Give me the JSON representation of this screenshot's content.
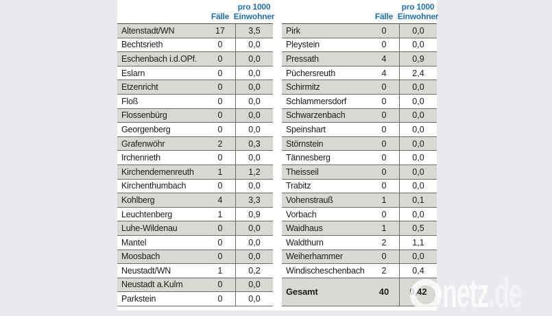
{
  "header": {
    "cases_label": "Fälle",
    "per1000_line1": "pro 1000",
    "per1000_line2": "Einwohner"
  },
  "chart_data": {
    "type": "table",
    "columns": [
      "",
      "Fälle",
      "pro 1000 Einwohner"
    ],
    "left_rows": [
      {
        "name": "Altenstadt/WN",
        "cases": "17",
        "per1000": "3,5"
      },
      {
        "name": "Bechtsrieth",
        "cases": "0",
        "per1000": "0,0"
      },
      {
        "name": "Eschenbach i.d.OPf.",
        "cases": "0",
        "per1000": "0,0"
      },
      {
        "name": "Eslarn",
        "cases": "0",
        "per1000": "0,0"
      },
      {
        "name": "Etzenricht",
        "cases": "0",
        "per1000": "0,0"
      },
      {
        "name": "Floß",
        "cases": "0",
        "per1000": "0,0"
      },
      {
        "name": "Flossenbürg",
        "cases": "0",
        "per1000": "0,0"
      },
      {
        "name": "Georgenberg",
        "cases": "0",
        "per1000": "0,0"
      },
      {
        "name": "Grafenwöhr",
        "cases": "2",
        "per1000": "0,3"
      },
      {
        "name": "Irchenrieth",
        "cases": "0",
        "per1000": "0,0"
      },
      {
        "name": "Kirchendemenreuth",
        "cases": "1",
        "per1000": "1,2"
      },
      {
        "name": "Kirchenthumbach",
        "cases": "0",
        "per1000": "0,0"
      },
      {
        "name": "Kohlberg",
        "cases": "4",
        "per1000": "3,3"
      },
      {
        "name": "Leuchtenberg",
        "cases": "1",
        "per1000": "0,9"
      },
      {
        "name": "Luhe-Wildenau",
        "cases": "0",
        "per1000": "0,0"
      },
      {
        "name": "Mantel",
        "cases": "0",
        "per1000": "0,0"
      },
      {
        "name": "Moosbach",
        "cases": "0",
        "per1000": "0,0"
      },
      {
        "name": "Neustadt/WN",
        "cases": "1",
        "per1000": "0,2"
      },
      {
        "name": "Neustadt a.Kulm",
        "cases": "0",
        "per1000": "0,0"
      },
      {
        "name": "Parkstein",
        "cases": "0",
        "per1000": "0,0"
      }
    ],
    "right_rows": [
      {
        "name": "Pirk",
        "cases": "0",
        "per1000": "0,0"
      },
      {
        "name": "Pleystein",
        "cases": "0",
        "per1000": "0,0"
      },
      {
        "name": "Pressath",
        "cases": "4",
        "per1000": "0,9"
      },
      {
        "name": "Püchersreuth",
        "cases": "4",
        "per1000": "2,4"
      },
      {
        "name": "Schirmitz",
        "cases": "0",
        "per1000": "0,0"
      },
      {
        "name": "Schlammersdorf",
        "cases": "0",
        "per1000": "0,0"
      },
      {
        "name": "Schwarzenbach",
        "cases": "0",
        "per1000": "0,0"
      },
      {
        "name": "Speinshart",
        "cases": "0",
        "per1000": "0,0"
      },
      {
        "name": "Störnstein",
        "cases": "0",
        "per1000": "0,0"
      },
      {
        "name": "Tännesberg",
        "cases": "0",
        "per1000": "0,0"
      },
      {
        "name": "Theisseil",
        "cases": "0",
        "per1000": "0,0"
      },
      {
        "name": "Trabitz",
        "cases": "0",
        "per1000": "0,0"
      },
      {
        "name": "Vohenstrauß",
        "cases": "1",
        "per1000": "0,1"
      },
      {
        "name": "Vorbach",
        "cases": "0",
        "per1000": "0,0"
      },
      {
        "name": "Waidhaus",
        "cases": "1",
        "per1000": "0,5"
      },
      {
        "name": "Waldthurn",
        "cases": "2",
        "per1000": "1,1"
      },
      {
        "name": "Weiherhammer",
        "cases": "0",
        "per1000": "0,0"
      },
      {
        "name": "Windischeschenbach",
        "cases": "2",
        "per1000": "0,4"
      }
    ],
    "total": {
      "name": "Gesamt",
      "cases": "40",
      "per1000": "0,42"
    }
  },
  "watermark": {
    "netz": "netz",
    "de": ".de"
  },
  "colors": {
    "background": "#e9eaee",
    "panel": "#ffffff",
    "shaded_row": "#d9d8d4",
    "row_border": "#6b6964",
    "header_text": "#1d72b4"
  }
}
